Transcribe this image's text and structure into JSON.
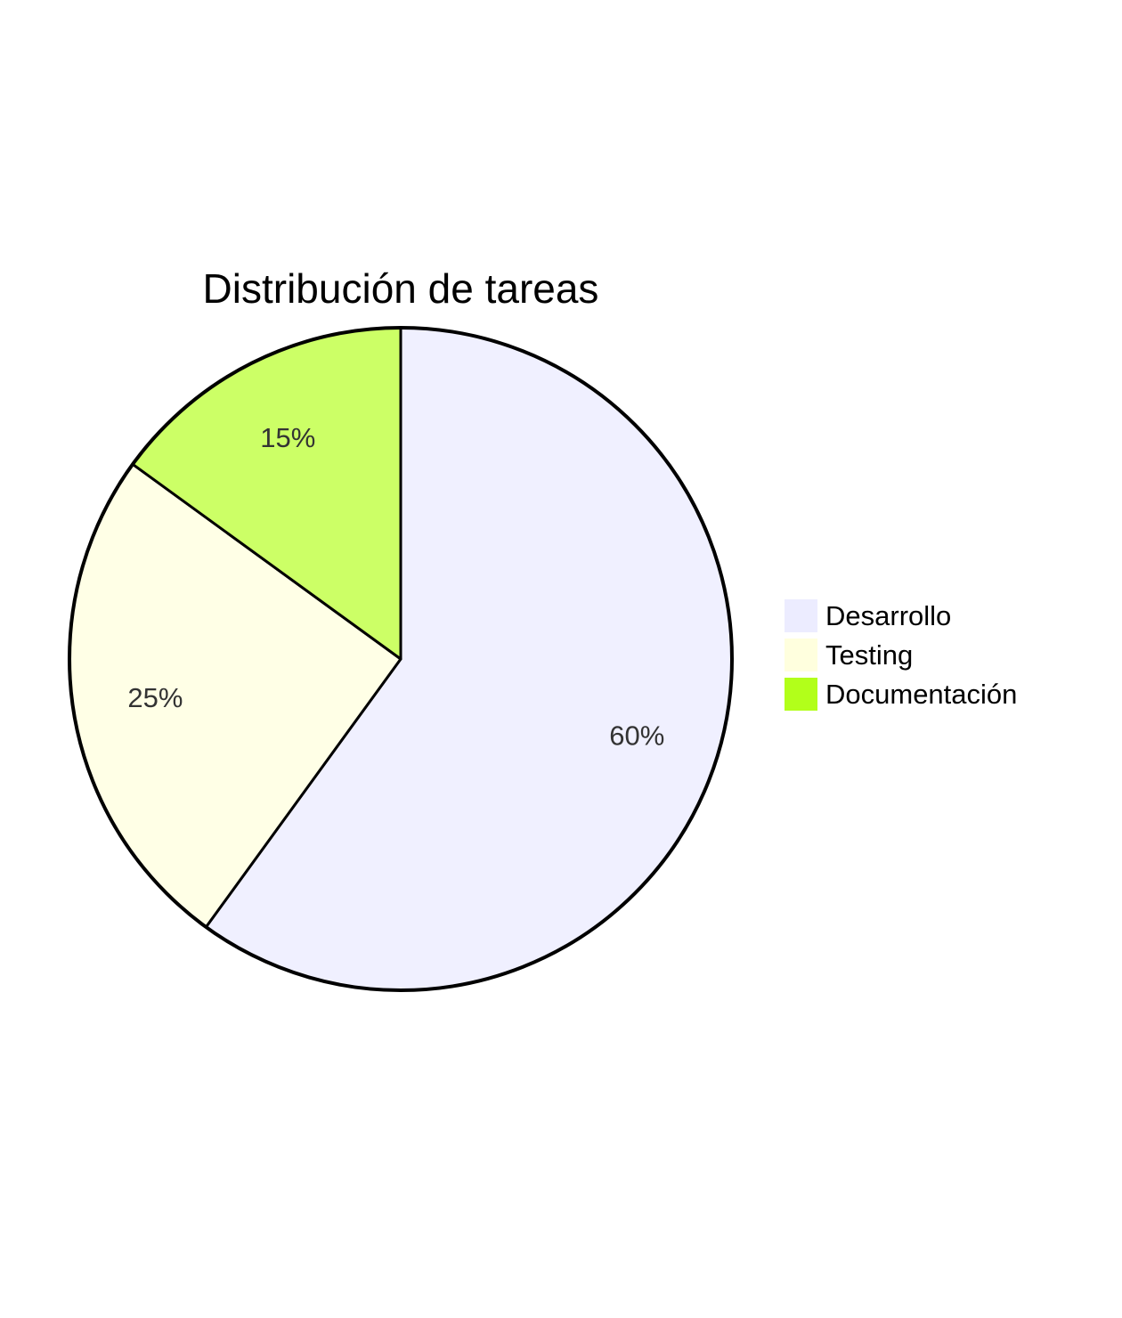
{
  "chart_data": {
    "type": "pie",
    "title": "Distribución de tareas",
    "labels": [
      "Desarrollo",
      "Testing",
      "Documentación"
    ],
    "values": [
      60,
      25,
      15
    ],
    "value_labels": [
      "60%",
      "25%",
      "15%"
    ],
    "colors": [
      "#ECECFF",
      "#FFFFDE",
      "#B2FF1A"
    ],
    "slice_colors": [
      "#F0F0FF",
      "#FFFFE6",
      "#CCFF66"
    ],
    "stroke_color": "#000000",
    "start_angle": "12 o'clock",
    "direction": "clockwise",
    "legend_position": "right"
  }
}
